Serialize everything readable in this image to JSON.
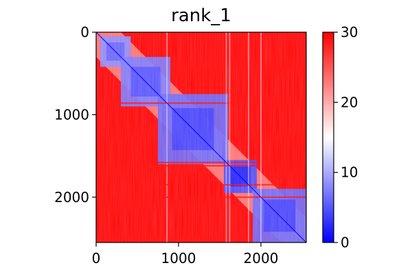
{
  "chart_data": {
    "type": "heatmap",
    "title": "rank_1",
    "xlabel": "",
    "ylabel": "",
    "xlim": [
      0,
      2550
    ],
    "ylim": [
      2550,
      0
    ],
    "x_ticks": [
      0,
      1000,
      2000
    ],
    "y_ticks": [
      0,
      1000,
      2000
    ],
    "x_tick_labels": [
      "0",
      "1000",
      "2000"
    ],
    "y_tick_labels": [
      "0",
      "1000",
      "2000"
    ],
    "colormap": "bwr",
    "colorbar": {
      "range": [
        0,
        30
      ],
      "ticks": [
        0,
        10,
        20,
        30
      ],
      "tick_labels": [
        "0",
        "10",
        "20",
        "30"
      ],
      "colors": [
        "#0000ff",
        "#ffffff",
        "#ff0000"
      ]
    },
    "matrix_description_values": {
      "diagonal_value": 0,
      "background_value": 30,
      "domains": [
        {
          "start": 50,
          "end": 420,
          "value": 8
        },
        {
          "start": 300,
          "end": 900,
          "value": 7
        },
        {
          "start": 750,
          "end": 1600,
          "value": 6
        },
        {
          "start": 1550,
          "end": 1950,
          "value": 4
        },
        {
          "start": 1900,
          "end": 2550,
          "value": 6
        }
      ],
      "stripes": [
        860,
        1580,
        1620,
        1850,
        2000
      ]
    },
    "grid": false
  }
}
